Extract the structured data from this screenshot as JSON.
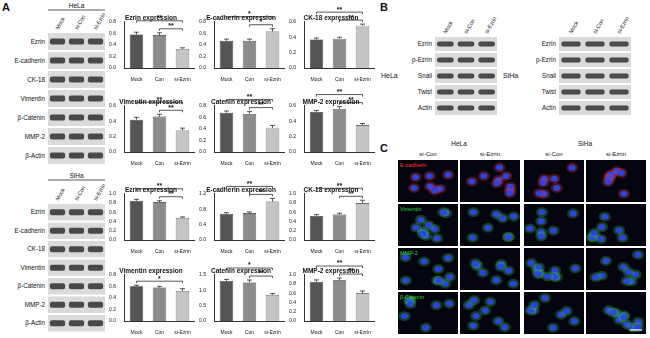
{
  "panel_labels": [
    "A",
    "B",
    "C"
  ],
  "panel_a": {
    "blots": [
      {
        "cell_line": "HeLa",
        "lanes": [
          "Mock",
          "si-Con",
          "si-Ezrin"
        ],
        "rows": [
          "Ezrin",
          "E-cadherin",
          "CK-18",
          "Vimentin",
          "β-Catenin",
          "MMP-2",
          "β-Actin"
        ]
      },
      {
        "cell_line": "SiHa",
        "lanes": [
          "Mock",
          "si-Con",
          "si-Ezrin"
        ],
        "rows": [
          "Ezrin",
          "E-cadherin",
          "CK-18",
          "Vimentin",
          "β-Catenin",
          "MMP-2",
          "β-Actin"
        ]
      }
    ]
  },
  "chart_data": [
    {
      "type": "bar",
      "title": "Ezrin expression",
      "categories": [
        "Mock",
        "Con",
        "si-Ezrin"
      ],
      "values": [
        0.58,
        0.57,
        0.33
      ],
      "errors": [
        0.04,
        0.04,
        0.02
      ],
      "colors": [
        "#555555",
        "#8c8c8c",
        "#c4c4c4"
      ],
      "ylim": [
        0,
        0.8
      ],
      "yticks": [
        {
          "value": 0,
          "label": "0.0"
        },
        0.2,
        0.4,
        0.6,
        0.8
      ],
      "grid": false,
      "significance": [
        {
          "between": [
            "Con",
            "si-Ezrin"
          ],
          "label": "**"
        },
        {
          "between": [
            "Mock",
            "si-Ezrin"
          ],
          "label": "**"
        }
      ]
    },
    {
      "type": "bar",
      "title": "E-cadherin expression",
      "categories": [
        "Mock",
        "Con",
        "si-Ezrin"
      ],
      "values": [
        0.47,
        0.47,
        0.63
      ],
      "errors": [
        0.03,
        0.03,
        0.05
      ],
      "colors": [
        "#555555",
        "#8c8c8c",
        "#c4c4c4"
      ],
      "ylim": [
        0,
        0.8
      ],
      "yticks": [
        {
          "value": 0,
          "label": "0.0"
        },
        0.2,
        0.4,
        0.6,
        0.8
      ],
      "grid": false,
      "significance": [
        {
          "between": [
            "Con",
            "si-Ezrin"
          ],
          "label": "*"
        },
        {
          "between": [
            "Mock",
            "si-Ezrin"
          ],
          "label": "*"
        }
      ]
    },
    {
      "type": "bar",
      "title": "CK-18 expression",
      "categories": [
        "Mock",
        "Con",
        "si-Ezrin"
      ],
      "values": [
        0.37,
        0.38,
        0.55
      ],
      "errors": [
        0.02,
        0.02,
        0.02
      ],
      "colors": [
        "#555555",
        "#8c8c8c",
        "#c4c4c4"
      ],
      "ylim": [
        0,
        0.6
      ],
      "yticks": [
        {
          "value": 0,
          "label": "0.0"
        },
        0.2,
        0.4,
        0.6
      ],
      "grid": false,
      "significance": [
        {
          "between": [
            "Con",
            "si-Ezrin"
          ],
          "label": "**"
        },
        {
          "between": [
            "Mock",
            "si-Ezrin"
          ],
          "label": "**"
        }
      ]
    },
    {
      "type": "bar",
      "title": "Vimentin expression",
      "categories": [
        "Mock",
        "Con",
        "si-Ezrin"
      ],
      "values": [
        0.42,
        0.46,
        0.28
      ],
      "errors": [
        0.03,
        0.03,
        0.03
      ],
      "colors": [
        "#555555",
        "#8c8c8c",
        "#c4c4c4"
      ],
      "ylim": [
        0,
        0.6
      ],
      "yticks": [
        {
          "value": 0,
          "label": "0.0"
        },
        0.2,
        0.4,
        0.6
      ],
      "grid": false,
      "significance": [
        {
          "between": [
            "Con",
            "si-Ezrin"
          ],
          "label": "**"
        },
        {
          "between": [
            "Mock",
            "si-Ezrin"
          ],
          "label": "**"
        }
      ]
    },
    {
      "type": "bar",
      "title": "Catenin expression",
      "categories": [
        "Mock",
        "Con",
        "si-Ezrin"
      ],
      "values": [
        0.68,
        0.66,
        0.42
      ],
      "errors": [
        0.03,
        0.04,
        0.04
      ],
      "colors": [
        "#555555",
        "#8c8c8c",
        "#c4c4c4"
      ],
      "ylim": [
        0,
        0.8
      ],
      "yticks": [
        {
          "value": 0,
          "label": "0.0"
        },
        0.2,
        0.4,
        0.6,
        0.8
      ],
      "grid": false,
      "significance": [
        {
          "between": [
            "Con",
            "si-Ezrin"
          ],
          "label": "**"
        },
        {
          "between": [
            "Mock",
            "si-Ezrin"
          ],
          "label": "**"
        }
      ]
    },
    {
      "type": "bar",
      "title": "MMP-2 expression",
      "categories": [
        "Mock",
        "Con",
        "si-Ezrin"
      ],
      "values": [
        0.52,
        0.56,
        0.35
      ],
      "errors": [
        0.02,
        0.03,
        0.02
      ],
      "colors": [
        "#555555",
        "#8c8c8c",
        "#c4c4c4"
      ],
      "ylim": [
        0,
        0.6
      ],
      "yticks": [
        {
          "value": 0,
          "label": "0.0"
        },
        0.2,
        0.4,
        0.6
      ],
      "grid": false,
      "significance": [
        {
          "between": [
            "Con",
            "si-Ezrin"
          ],
          "label": "**"
        },
        {
          "between": [
            "Mock",
            "si-Ezrin"
          ],
          "label": "**"
        }
      ]
    },
    {
      "type": "bar",
      "title": "Ezrin expression",
      "categories": [
        "Mock",
        "Con",
        "si-Ezrin"
      ],
      "values": [
        0.85,
        0.82,
        0.48
      ],
      "errors": [
        0.03,
        0.03,
        0.02
      ],
      "colors": [
        "#555555",
        "#8c8c8c",
        "#c4c4c4"
      ],
      "ylim": [
        0,
        1
      ],
      "yticks": [
        {
          "value": 0,
          "label": "0.0"
        },
        0.2,
        0.4,
        0.6,
        0.8,
        {
          "value": 1,
          "label": "1.0"
        }
      ],
      "grid": false,
      "significance": [
        {
          "between": [
            "Con",
            "si-Ezrin"
          ],
          "label": "**"
        },
        {
          "between": [
            "Mock",
            "si-Ezrin"
          ],
          "label": "**"
        }
      ]
    },
    {
      "type": "bar",
      "title": "E-cadherin expression",
      "categories": [
        "Mock",
        "Con",
        "si-Ezrin"
      ],
      "values": [
        0.68,
        0.7,
        1.0
      ],
      "errors": [
        0.03,
        0.03,
        0.08
      ],
      "colors": [
        "#555555",
        "#8c8c8c",
        "#c4c4c4"
      ],
      "ylim": [
        0,
        1.2
      ],
      "yticks": [
        {
          "value": 0,
          "label": "0.0"
        },
        0.4,
        0.8,
        1.2
      ],
      "grid": false,
      "significance": [
        {
          "between": [
            "Con",
            "si-Ezrin"
          ],
          "label": "**"
        },
        {
          "between": [
            "Mock",
            "si-Ezrin"
          ],
          "label": "**"
        }
      ]
    },
    {
      "type": "bar",
      "title": "CK-18 expression",
      "categories": [
        "Mock",
        "Con",
        "si-Ezrin"
      ],
      "values": [
        0.52,
        0.55,
        0.8
      ],
      "errors": [
        0.03,
        0.03,
        0.06
      ],
      "colors": [
        "#555555",
        "#8c8c8c",
        "#c4c4c4"
      ],
      "ylim": [
        0,
        1
      ],
      "yticks": [
        {
          "value": 0,
          "label": "0.0"
        },
        0.2,
        0.4,
        0.6,
        0.8,
        {
          "value": 1,
          "label": "1.0"
        }
      ],
      "grid": false,
      "significance": [
        {
          "between": [
            "Con",
            "si-Ezrin"
          ],
          "label": "**"
        },
        {
          "between": [
            "Mock",
            "si-Ezrin"
          ],
          "label": "**"
        }
      ]
    },
    {
      "type": "bar",
      "title": "Vimentin expression",
      "categories": [
        "Mock",
        "Con",
        "si-Ezrin"
      ],
      "values": [
        0.6,
        0.58,
        0.52
      ],
      "errors": [
        0.02,
        0.02,
        0.04
      ],
      "colors": [
        "#555555",
        "#8c8c8c",
        "#c4c4c4"
      ],
      "ylim": [
        0,
        0.8
      ],
      "yticks": [
        {
          "value": 0,
          "label": "0.0"
        },
        0.2,
        0.4,
        0.6,
        0.8
      ],
      "grid": false,
      "significance": [
        {
          "between": [
            "Mock",
            "si-Ezrin"
          ],
          "label": "*"
        }
      ]
    },
    {
      "type": "bar",
      "title": "Catenin expression",
      "categories": [
        "Mock",
        "Con",
        "si-Ezrin"
      ],
      "values": [
        1.3,
        1.25,
        0.85
      ],
      "errors": [
        0.05,
        0.08,
        0.04
      ],
      "colors": [
        "#555555",
        "#8c8c8c",
        "#c4c4c4"
      ],
      "ylim": [
        0,
        1.5
      ],
      "yticks": [
        {
          "value": 0,
          "label": "0.0"
        },
        0.5,
        {
          "value": 1,
          "label": "1.0"
        },
        1.5
      ],
      "grid": false,
      "significance": [
        {
          "between": [
            "Con",
            "si-Ezrin"
          ],
          "label": "**"
        },
        {
          "between": [
            "Mock",
            "si-Ezrin"
          ],
          "label": "*"
        }
      ]
    },
    {
      "type": "bar",
      "title": "MMP-2 expression",
      "categories": [
        "Mock",
        "Con",
        "si-Ezrin"
      ],
      "values": [
        0.85,
        0.88,
        0.6
      ],
      "errors": [
        0.04,
        0.05,
        0.05
      ],
      "colors": [
        "#555555",
        "#8c8c8c",
        "#c4c4c4"
      ],
      "ylim": [
        0,
        1
      ],
      "yticks": [
        {
          "value": 0,
          "label": "0.0"
        },
        0.2,
        0.4,
        0.6,
        0.8,
        {
          "value": 1,
          "label": "1.0"
        }
      ],
      "grid": false,
      "significance": [
        {
          "between": [
            "Con",
            "si-Ezrin"
          ],
          "label": "**"
        },
        {
          "between": [
            "Mock",
            "si-Ezrin"
          ],
          "label": "**"
        }
      ]
    }
  ],
  "panel_b": {
    "blots": [
      {
        "cell_line": "HeLa",
        "lanes": [
          "Mock",
          "si-Con",
          "si-Ezrin"
        ],
        "rows": [
          "Ezrin",
          "p-Ezrin",
          "Snail",
          "Twist",
          "Actin"
        ]
      },
      {
        "cell_line": "SiHa",
        "lanes": [
          "Mock",
          "si-Con",
          "si-Ezrin"
        ],
        "rows": [
          "Ezrin",
          "p-Ezrin",
          "Snail",
          "Twist",
          "Actin"
        ]
      }
    ]
  },
  "panel_c": {
    "groups": [
      {
        "cell_line": "HeLa",
        "conditions": [
          "si-Con",
          "si-Ezrin"
        ]
      },
      {
        "cell_line": "SiHa",
        "conditions": [
          "si-Con",
          "si-Ezrin"
        ]
      }
    ],
    "stains": [
      {
        "label": "E-cadherin",
        "color": "#ff3b3b"
      },
      {
        "label": "Vimentin",
        "color": "#3bd43b"
      },
      {
        "label": "MMP-2",
        "color": "#3bd43b"
      },
      {
        "label": "β-Catenin",
        "color": "#3bd43b"
      }
    ]
  }
}
